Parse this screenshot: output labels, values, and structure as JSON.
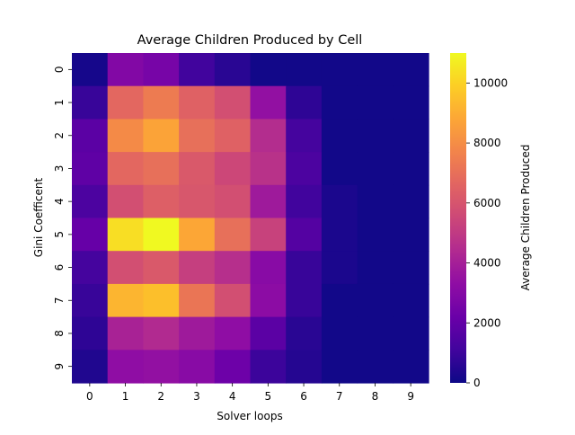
{
  "chart_data": {
    "type": "heatmap",
    "title": "Average Children Produced by Cell",
    "xlabel": "Solver loops",
    "ylabel": "Gini Coefficent",
    "x_categories": [
      "0",
      "1",
      "2",
      "3",
      "4",
      "5",
      "6",
      "7",
      "8",
      "9"
    ],
    "y_categories": [
      "0",
      "1",
      "2",
      "3",
      "4",
      "5",
      "6",
      "7",
      "8",
      "9"
    ],
    "values": [
      [
        200,
        2900,
        2600,
        1100,
        600,
        100,
        100,
        100,
        100,
        100
      ],
      [
        900,
        6700,
        7400,
        6500,
        5800,
        3400,
        700,
        100,
        100,
        100
      ],
      [
        1800,
        7900,
        8700,
        7000,
        6500,
        4500,
        1200,
        100,
        100,
        100
      ],
      [
        1900,
        6700,
        7000,
        6200,
        5500,
        4700,
        1400,
        100,
        100,
        100
      ],
      [
        1400,
        5800,
        6400,
        6100,
        5800,
        3800,
        1100,
        300,
        100,
        100
      ],
      [
        2100,
        10300,
        11000,
        8800,
        7000,
        5300,
        1600,
        300,
        100,
        100
      ],
      [
        1200,
        5800,
        6200,
        5200,
        4600,
        3100,
        900,
        300,
        100,
        100
      ],
      [
        900,
        9200,
        9500,
        7200,
        5800,
        3200,
        900,
        100,
        100,
        100
      ],
      [
        700,
        4100,
        4400,
        3800,
        3300,
        1800,
        600,
        100,
        100,
        100
      ],
      [
        400,
        3300,
        3400,
        3100,
        2300,
        1000,
        500,
        100,
        100,
        100
      ]
    ],
    "colorbar": {
      "label": "Average Children Produced",
      "min": 0,
      "max": 11000,
      "ticks": [
        0,
        2000,
        4000,
        6000,
        8000,
        10000
      ],
      "tick_labels": [
        "0",
        "2000",
        "4000",
        "6000",
        "8000",
        "10000"
      ]
    },
    "colormap": "plasma"
  }
}
